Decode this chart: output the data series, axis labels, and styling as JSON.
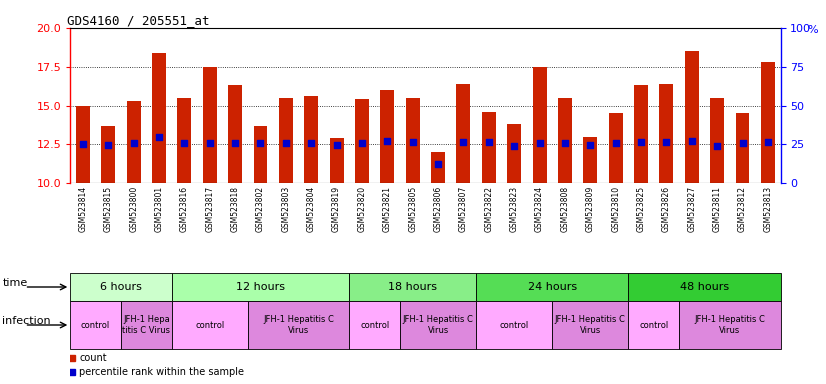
{
  "title": "GDS4160 / 205551_at",
  "samples": [
    "GSM523814",
    "GSM523815",
    "GSM523800",
    "GSM523801",
    "GSM523816",
    "GSM523817",
    "GSM523818",
    "GSM523802",
    "GSM523803",
    "GSM523804",
    "GSM523819",
    "GSM523820",
    "GSM523821",
    "GSM523805",
    "GSM523806",
    "GSM523807",
    "GSM523822",
    "GSM523823",
    "GSM523824",
    "GSM523808",
    "GSM523809",
    "GSM523810",
    "GSM523825",
    "GSM523826",
    "GSM523827",
    "GSM523811",
    "GSM523812",
    "GSM523813"
  ],
  "counts": [
    15.0,
    13.7,
    15.3,
    18.4,
    15.5,
    17.5,
    16.3,
    13.7,
    15.5,
    15.6,
    12.9,
    15.4,
    16.0,
    15.5,
    12.0,
    16.4,
    14.6,
    13.8,
    17.5,
    15.5,
    13.0,
    14.5,
    16.3,
    16.4,
    18.5,
    15.5,
    14.5,
    17.8
  ],
  "percentiles": [
    25.0,
    24.5,
    25.5,
    30.0,
    25.5,
    25.5,
    25.5,
    25.5,
    26.0,
    26.0,
    24.5,
    25.5,
    27.0,
    26.5,
    12.0,
    26.5,
    26.5,
    24.0,
    25.5,
    26.0,
    24.5,
    25.5,
    26.5,
    26.5,
    27.0,
    24.0,
    25.5,
    26.5
  ],
  "ymin": 10,
  "ymax": 20,
  "y2min": 0,
  "y2max": 100,
  "yticks": [
    10,
    12.5,
    15,
    17.5,
    20
  ],
  "y2ticks": [
    0,
    25,
    50,
    75,
    100
  ],
  "bar_color": "#cc2200",
  "percentile_color": "#0000cc",
  "time_groups": [
    {
      "label": "6 hours",
      "start": 0,
      "end": 4,
      "color": "#ccffcc"
    },
    {
      "label": "12 hours",
      "start": 4,
      "end": 11,
      "color": "#aaffaa"
    },
    {
      "label": "18 hours",
      "start": 11,
      "end": 16,
      "color": "#88ee88"
    },
    {
      "label": "24 hours",
      "start": 16,
      "end": 22,
      "color": "#55dd55"
    },
    {
      "label": "48 hours",
      "start": 22,
      "end": 28,
      "color": "#33cc33"
    }
  ],
  "infection_groups": [
    {
      "label": "control",
      "start": 0,
      "end": 2,
      "color": "#ffaaff"
    },
    {
      "label": "JFH-1 Hepa\ntitis C Virus",
      "start": 2,
      "end": 4,
      "color": "#dd88dd"
    },
    {
      "label": "control",
      "start": 4,
      "end": 7,
      "color": "#ffaaff"
    },
    {
      "label": "JFH-1 Hepatitis C\nVirus",
      "start": 7,
      "end": 11,
      "color": "#dd88dd"
    },
    {
      "label": "control",
      "start": 11,
      "end": 13,
      "color": "#ffaaff"
    },
    {
      "label": "JFH-1 Hepatitis C\nVirus",
      "start": 13,
      "end": 16,
      "color": "#dd88dd"
    },
    {
      "label": "control",
      "start": 16,
      "end": 19,
      "color": "#ffaaff"
    },
    {
      "label": "JFH-1 Hepatitis C\nVirus",
      "start": 19,
      "end": 22,
      "color": "#dd88dd"
    },
    {
      "label": "control",
      "start": 22,
      "end": 24,
      "color": "#ffaaff"
    },
    {
      "label": "JFH-1 Hepatitis C\nVirus",
      "start": 24,
      "end": 28,
      "color": "#dd88dd"
    }
  ],
  "legend_count_color": "#cc2200",
  "legend_pct_color": "#0000cc"
}
